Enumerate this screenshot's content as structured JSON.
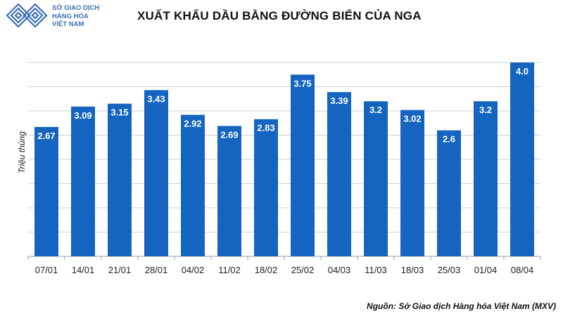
{
  "brand": {
    "lines": [
      "SỞ GIAO DỊCH",
      "HÀNG HÓA",
      "VIỆT NAM"
    ],
    "color": "#3b6fb6"
  },
  "source": "Nguồn: Sở Giao dịch Hàng hóa Việt Nam (MXV)",
  "chart_data": {
    "type": "bar",
    "title": "XUẤT KHẨU DẦU BẰNG ĐƯỜNG BIỂN CỦA NGA",
    "xlabel": "",
    "ylabel": "Triệu thùng",
    "categories": [
      "07/01",
      "14/01",
      "21/01",
      "28/01",
      "04/02",
      "11/02",
      "18/02",
      "25/02",
      "04/03",
      "11/03",
      "18/03",
      "25/03",
      "01/04",
      "08/04"
    ],
    "values": [
      2.67,
      3.09,
      3.15,
      3.43,
      2.92,
      2.69,
      2.83,
      3.75,
      3.39,
      3.2,
      3.02,
      2.6,
      3.2,
      4.0
    ],
    "value_labels": [
      "2.67",
      "3.09",
      "3.15",
      "3.43",
      "2.92",
      "2.69",
      "2.83",
      "3.75",
      "3.39",
      "3.2",
      "3.02",
      "2.6",
      "3.2",
      "4.0"
    ],
    "ylim": [
      0,
      4.0
    ],
    "grid": true,
    "bar_color": "#1565c0",
    "label_color": "#ffffff"
  }
}
